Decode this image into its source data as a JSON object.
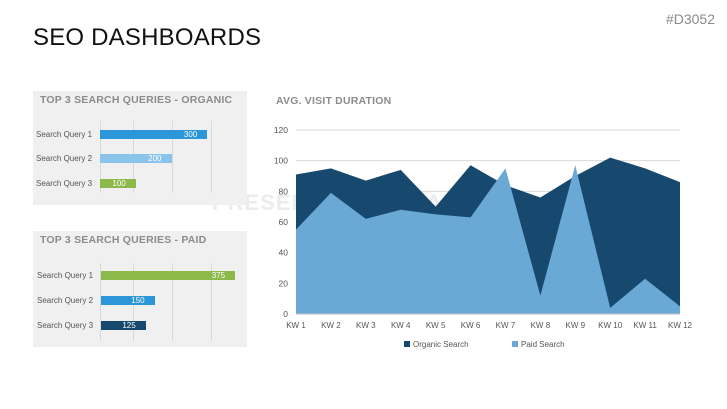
{
  "header": {
    "title": "SEO DASHBOARDS",
    "code": "#D3052"
  },
  "watermark": "PRESENTATIONLOAD",
  "organic_panel": {
    "title": "TOP 3 SEARCH QUERIES - ORGANIC",
    "items": [
      {
        "label": "Search Query 1",
        "value": "300",
        "color": "#2b96d8"
      },
      {
        "label": "Search Query 2",
        "value": "200",
        "color": "#8ac4eb"
      },
      {
        "label": "Search Query 3",
        "value": "100",
        "color": "#8db84a"
      }
    ]
  },
  "paid_panel": {
    "title": "TOP 3 SEARCH QUERIES - PAID",
    "items": [
      {
        "label": "Search Query 1",
        "value": "375",
        "color": "#8db84a"
      },
      {
        "label": "Search Query 2",
        "value": "150",
        "color": "#2b96d8"
      },
      {
        "label": "Search Query 3",
        "value": "125",
        "color": "#17496e"
      }
    ]
  },
  "chart_data": [
    {
      "type": "bar",
      "orientation": "horizontal",
      "title": "TOP 3 SEARCH QUERIES - ORGANIC",
      "categories": [
        "Search Query 1",
        "Search Query 2",
        "Search Query 3"
      ],
      "values": [
        300,
        200,
        100
      ],
      "xlim": [
        0,
        400
      ]
    },
    {
      "type": "bar",
      "orientation": "horizontal",
      "title": "TOP 3 SEARCH QUERIES - PAID",
      "categories": [
        "Search Query 1",
        "Search Query 2",
        "Search Query 3"
      ],
      "values": [
        375,
        150,
        125
      ],
      "xlim": [
        0,
        400
      ]
    },
    {
      "type": "area",
      "title": "AVG. VISIT DURATION",
      "x": [
        "KW 1",
        "KW 2",
        "KW 3",
        "KW 4",
        "KW 5",
        "KW 6",
        "KW 7",
        "KW 8",
        "KW 9",
        "KW 10",
        "KW 11",
        "KW 12"
      ],
      "ylim": [
        0,
        120
      ],
      "yticks": [
        0,
        20,
        40,
        60,
        80,
        100,
        120
      ],
      "grid": true,
      "legend": "bottom",
      "series": [
        {
          "name": "Organic Search",
          "color": "#17496e",
          "values": [
            91,
            95,
            87,
            94,
            70,
            97,
            84,
            76,
            90,
            102,
            95,
            86
          ]
        },
        {
          "name": "Paid Search",
          "color": "#6aa8d6",
          "values": [
            55,
            79,
            62,
            68,
            65,
            63,
            95,
            12,
            97,
            4,
            23,
            5
          ]
        }
      ]
    }
  ]
}
